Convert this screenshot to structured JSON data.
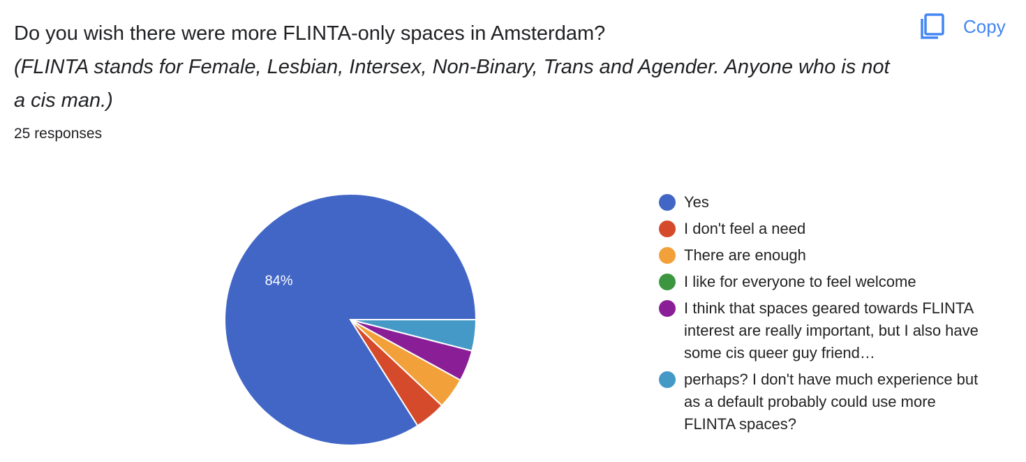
{
  "question": {
    "title": "Do you wish there were more FLINTA-only spaces in Amsterdam?",
    "description": "(FLINTA stands for Female, Lesbian, Intersex, Non-Binary, Trans and Agender. Anyone who is not a cis man.)",
    "responses": "25 responses"
  },
  "toolbar": {
    "copy_label": "Copy",
    "copy_icon": "copy-icon",
    "accent": "#4285f4"
  },
  "chart_data": {
    "type": "pie",
    "total_responses": 25,
    "slices": [
      {
        "label": "Yes",
        "count": 21,
        "percent": 84,
        "color": "#4166c6",
        "shown_label": "84%"
      },
      {
        "label": "I don't feel a need",
        "count": 1,
        "percent": 4,
        "color": "#d44a2a",
        "shown_label": ""
      },
      {
        "label": "There are enough",
        "count": 1,
        "percent": 4,
        "color": "#f2a03a",
        "shown_label": ""
      },
      {
        "label": "I like for everyone to feel welcome",
        "count": 0,
        "percent": 0,
        "color": "#3c9640",
        "shown_label": ""
      },
      {
        "label": "I think that spaces geared towards FLINTA interest are really important, but I also have some cis queer guy friend…",
        "count": 1,
        "percent": 4,
        "color": "#8a1e96",
        "shown_label": ""
      },
      {
        "label": "perhaps? I don't have much experience but as a default probably could use more FLINTA spaces?",
        "count": 1,
        "percent": 4,
        "color": "#4499c6",
        "shown_label": ""
      }
    ],
    "legend_position": "right"
  }
}
